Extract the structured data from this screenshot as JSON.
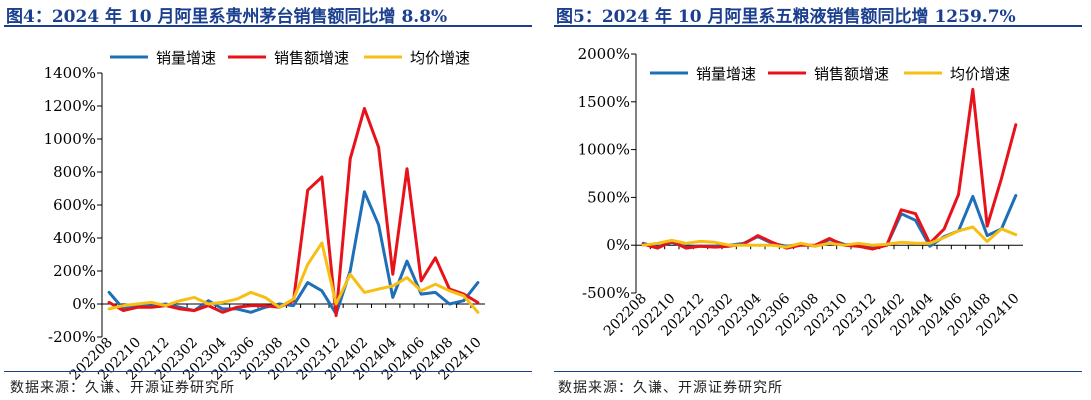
{
  "figures": [
    {
      "caption": "图4：2024 年 10 月阿里系贵州茅台销售额同比增 8.8%",
      "source": "数据来源：久谦、开源证券研究所"
    },
    {
      "caption": "图5：2024 年 10 月阿里系五粮液销售额同比增 1259.7%",
      "source": "数据来源：久谦、开源证券研究所"
    }
  ],
  "colors": {
    "caption": "#1b3f8f",
    "volume": "#1f6fb8",
    "sales": "#e8121b",
    "price": "#f7bf13",
    "axis": "#000000"
  },
  "chart_data": [
    {
      "type": "line",
      "x": [
        "202208",
        "202209",
        "202210",
        "202211",
        "202212",
        "202301",
        "202302",
        "202303",
        "202304",
        "202305",
        "202306",
        "202307",
        "202308",
        "202309",
        "202310",
        "202311",
        "202312",
        "202401",
        "202402",
        "202403",
        "202404",
        "202405",
        "202406",
        "202407",
        "202408",
        "202409",
        "202410"
      ],
      "tick_labels": [
        "202208",
        "202210",
        "202212",
        "202302",
        "202304",
        "202306",
        "202308",
        "202310",
        "202312",
        "202402",
        "202404",
        "202406",
        "202408",
        "202410"
      ],
      "ylim": [
        -200,
        1400
      ],
      "yticks": [
        "-200%",
        "0%",
        "200%",
        "400%",
        "600%",
        "800%",
        "1000%",
        "1200%",
        "1400%"
      ],
      "legend_position": "top",
      "grid": false,
      "series": [
        {
          "name": "销量增速",
          "color": "#1f6fb8",
          "values": [
            70,
            -30,
            -10,
            -10,
            0,
            -20,
            -40,
            20,
            -30,
            -30,
            -50,
            -20,
            0,
            -10,
            130,
            80,
            -60,
            200,
            680,
            480,
            40,
            260,
            60,
            70,
            0,
            20,
            130
          ]
        },
        {
          "name": "销售额增速",
          "color": "#e8121b",
          "values": [
            10,
            -40,
            -20,
            -20,
            -10,
            -30,
            -40,
            -10,
            -50,
            -20,
            -10,
            -10,
            -20,
            20,
            690,
            770,
            -70,
            880,
            1185,
            950,
            180,
            820,
            140,
            280,
            90,
            60,
            9
          ]
        },
        {
          "name": "均价增速",
          "color": "#f7bf13",
          "values": [
            -30,
            -10,
            0,
            10,
            -10,
            20,
            40,
            0,
            10,
            30,
            70,
            40,
            -20,
            30,
            240,
            370,
            0,
            180,
            70,
            90,
            110,
            160,
            80,
            120,
            80,
            50,
            -50
          ]
        }
      ]
    },
    {
      "type": "line",
      "x": [
        "202208",
        "202209",
        "202210",
        "202211",
        "202212",
        "202301",
        "202302",
        "202303",
        "202304",
        "202305",
        "202306",
        "202307",
        "202308",
        "202309",
        "202310",
        "202311",
        "202312",
        "202401",
        "202402",
        "202403",
        "202404",
        "202405",
        "202406",
        "202407",
        "202408",
        "202409",
        "202410"
      ],
      "tick_labels": [
        "202208",
        "202210",
        "202212",
        "202302",
        "202304",
        "202306",
        "202308",
        "202310",
        "202312",
        "202402",
        "202404",
        "202406",
        "202408",
        "202410"
      ],
      "ylim": [
        -500,
        2000
      ],
      "yticks": [
        "-500%",
        "0%",
        "500%",
        "1000%",
        "1500%",
        "2000%"
      ],
      "legend_position": "top",
      "grid": false,
      "series": [
        {
          "name": "销量增速",
          "color": "#1f6fb8",
          "values": [
            20,
            -20,
            30,
            -20,
            -10,
            -10,
            0,
            20,
            90,
            20,
            -10,
            10,
            -10,
            60,
            10,
            -10,
            -20,
            0,
            330,
            260,
            -10,
            90,
            150,
            510,
            100,
            170,
            520
          ]
        },
        {
          "name": "销售额增速",
          "color": "#e8121b",
          "values": [
            10,
            -30,
            40,
            -30,
            -10,
            -20,
            -10,
            10,
            100,
            30,
            -30,
            0,
            0,
            70,
            0,
            -10,
            -40,
            0,
            370,
            330,
            20,
            170,
            530,
            1630,
            200,
            700,
            1260
          ]
        },
        {
          "name": "均价增速",
          "color": "#f7bf13",
          "values": [
            0,
            20,
            50,
            20,
            40,
            30,
            0,
            0,
            0,
            0,
            -20,
            20,
            -10,
            20,
            0,
            20,
            0,
            10,
            30,
            20,
            20,
            80,
            150,
            190,
            40,
            170,
            110
          ]
        }
      ]
    }
  ]
}
